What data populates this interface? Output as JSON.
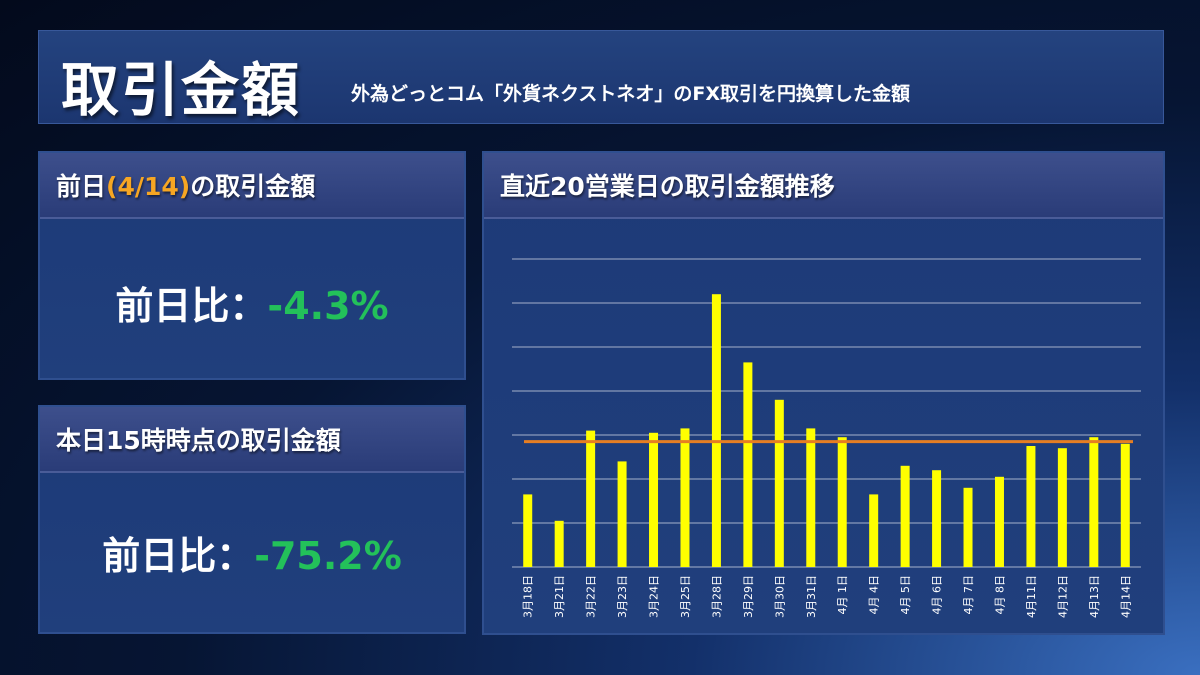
{
  "header": {
    "title": "取引金額",
    "subtitle": "外為どっとコム「外貨ネクストネオ」のFX取引を円換算した金額"
  },
  "prev_day_panel": {
    "heading_prefix": "前日",
    "heading_date": "(4/14)",
    "heading_suffix": "の取引金額",
    "label": "前日比：",
    "value": "-4.3%"
  },
  "today_panel": {
    "heading": "本日15時時点の取引金額",
    "label": "前日比：",
    "value": "-75.2%"
  },
  "chart_panel": {
    "heading": "直近20営業日の取引金額推移"
  },
  "colors": {
    "bar": "#ffff00",
    "average_line": "#e67e22",
    "gridline": "#c8cfe0",
    "negative": "#23c15a",
    "accent": "#f6a623"
  },
  "chart_data": {
    "type": "bar",
    "title": "直近20営業日の取引金額推移",
    "categories": [
      "3月18日",
      "3月21日",
      "3月22日",
      "3月23日",
      "3月24日",
      "3月25日",
      "3月28日",
      "3月29日",
      "3月30日",
      "3月31日",
      "4月 1日",
      "4月 4日",
      "4月 5日",
      "4月 6日",
      "4月 7日",
      "4月 8日",
      "4月11日",
      "4月12日",
      "4月13日",
      "4月14日"
    ],
    "values": [
      16.5,
      10.5,
      31,
      24,
      30.5,
      31.5,
      62,
      46.5,
      38,
      31.5,
      29.5,
      16.5,
      23,
      22,
      18,
      20.5,
      27.5,
      27,
      29.5,
      28
    ],
    "average": 28.5,
    "ylim": [
      0,
      70
    ],
    "gridlines": 7,
    "xlabel": "",
    "ylabel": "",
    "y_tick_labels_shown": false
  }
}
